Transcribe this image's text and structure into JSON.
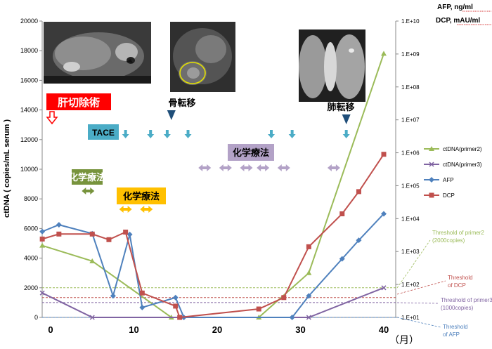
{
  "chart_data": {
    "type": "line",
    "ylabel": "ctDNA ( copies/mL serum )",
    "ylabel_right_1": "AFP, ng/ml",
    "ylabel_right_2": "DCP, mAU/ml",
    "x_unit": "（月）",
    "xlim": [
      -2,
      42
    ],
    "ylim": [
      0,
      20000
    ],
    "y2_scale": "log",
    "y2lim": [
      10,
      10000000000
    ],
    "x_ticks": [
      0,
      10,
      20,
      30,
      40
    ],
    "y_ticks": [
      0,
      2000,
      4000,
      6000,
      8000,
      10000,
      12000,
      14000,
      16000,
      18000,
      20000
    ],
    "y2_ticks": [
      "1.E+01",
      "1.E+02",
      "1.E+03",
      "1.E+04",
      "1.E+05",
      "1.E+06",
      "1.E+07",
      "1.E+08",
      "1.E+09",
      "1.E+10"
    ],
    "legend_position": "right",
    "series": [
      {
        "name": "ctDNA(primer2)",
        "axis": "left",
        "color": "#9bbb59",
        "marker": "triangle",
        "points": [
          [
            -1,
            4850
          ],
          [
            5,
            3800
          ],
          [
            14.5,
            0
          ],
          [
            25,
            0
          ],
          [
            31,
            3000
          ],
          [
            40,
            17800
          ]
        ]
      },
      {
        "name": "ctDNA(primer3)",
        "axis": "left",
        "color": "#8064a2",
        "marker": "x",
        "points": [
          [
            -1,
            1650
          ],
          [
            5,
            0
          ],
          [
            31,
            0
          ],
          [
            40,
            2000
          ]
        ]
      },
      {
        "name": "AFP",
        "axis": "right",
        "color": "#4f81bd",
        "marker": "diamond",
        "points": [
          [
            -1,
            4050
          ],
          [
            1,
            6500
          ],
          [
            5,
            3500
          ],
          [
            7.5,
            45
          ],
          [
            9.5,
            3300
          ],
          [
            11,
            20
          ],
          [
            15,
            40
          ],
          [
            16,
            10
          ],
          [
            29,
            10
          ],
          [
            31,
            45
          ],
          [
            35,
            600
          ],
          [
            37,
            2200
          ],
          [
            40,
            14000
          ]
        ]
      },
      {
        "name": "DCP",
        "axis": "right",
        "color": "#c0504d",
        "marker": "square",
        "points": [
          [
            -1,
            2400
          ],
          [
            1,
            3400
          ],
          [
            5,
            3400
          ],
          [
            7,
            2300
          ],
          [
            9,
            3900
          ],
          [
            11,
            55
          ],
          [
            15,
            22
          ],
          [
            15.5,
            10
          ],
          [
            25,
            18
          ],
          [
            28,
            40
          ],
          [
            31,
            1400
          ],
          [
            35,
            14000
          ],
          [
            37,
            66000
          ],
          [
            40,
            900000
          ]
        ]
      }
    ],
    "thresholds": [
      {
        "label": "Threshold  of primer2 (2000copies)",
        "axis": "left",
        "value": 2000,
        "color": "#9bbb59"
      },
      {
        "label": "Threshold of DCP",
        "axis": "right",
        "value": 40,
        "color": "#c0504d"
      },
      {
        "label": "Threshold of primer3 (1000copies)",
        "axis": "left",
        "value": 1000,
        "color": "#8064a2"
      },
      {
        "label": "Threshold of AFP",
        "axis": "right",
        "value": 10,
        "color": "#4f81bd"
      }
    ],
    "annotations": {
      "hepatectomy": {
        "label": "肝切除術",
        "x": 0
      },
      "tace": {
        "label": "TACE",
        "arrows_x": [
          9,
          12,
          14,
          16.5,
          26.5,
          29,
          35.5
        ]
      },
      "chemo1": {
        "label": "化学療法",
        "arrows_x": [
          4.5
        ]
      },
      "chemo2": {
        "label": "化学療法",
        "arrows_x": [
          9,
          11.5
        ]
      },
      "chemo3": {
        "label": "化学療法",
        "arrows_x": [
          18.5,
          21,
          23.5,
          25.5,
          28,
          34
        ]
      },
      "bone_met": {
        "label": "骨転移",
        "x": 14.5
      },
      "lung_met": {
        "label": "肺転移",
        "x": 35.5
      }
    }
  }
}
